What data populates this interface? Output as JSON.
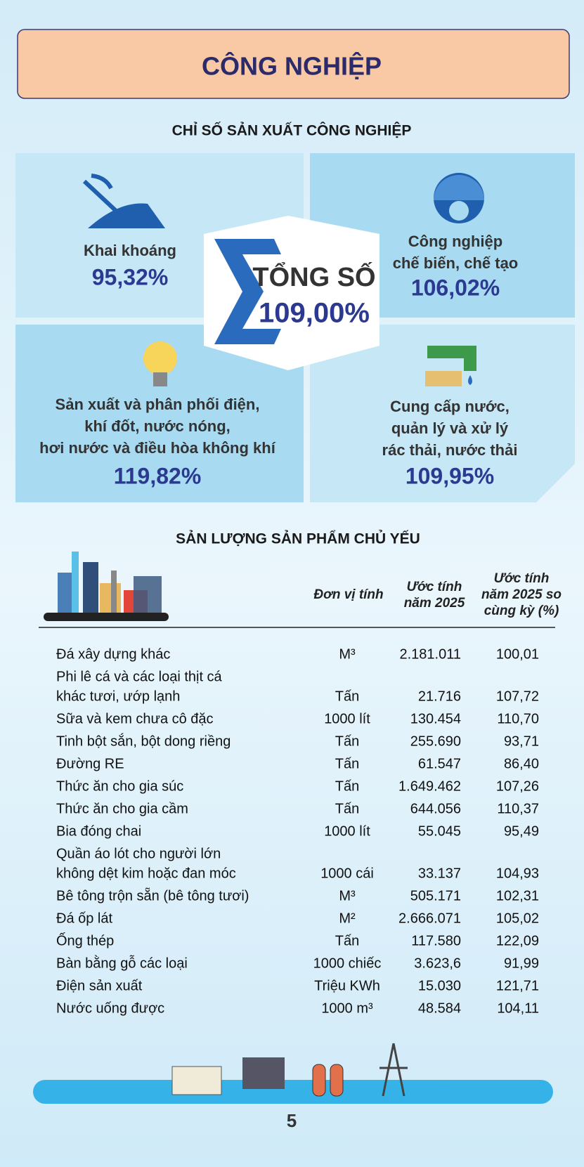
{
  "header": {
    "title": "CÔNG NGHIỆP"
  },
  "index_section": {
    "title": "CHỈ SỐ SẢN XUẤT CÔNG NGHIỆP",
    "total": {
      "label": "TỔNG SỐ",
      "value": "109,00%"
    },
    "sectors": [
      {
        "label": [
          "Khai khoáng"
        ],
        "value": "95,32%"
      },
      {
        "label": [
          "Công nghiệp",
          "chế biến, chế tạo"
        ],
        "value": "106,02%"
      },
      {
        "label": [
          "Sản xuất và phân phối điện,",
          "khí đốt, nước nóng,",
          "hơi nước và điều hòa không khí"
        ],
        "value": "119,82%"
      },
      {
        "label": [
          "Cung cấp nước,",
          "quản lý và xử lý",
          "rác thải, nước thải"
        ],
        "value": "109,95%"
      }
    ]
  },
  "products_section": {
    "title": "SẢN LƯỢNG SẢN PHẨM CHỦ YẾU",
    "table": {
      "headers": [
        [
          "Đơn vị tính"
        ],
        [
          "Ước tính",
          "năm 2025"
        ],
        [
          "Ước tính",
          "năm 2025 so",
          "cùng kỳ (%)"
        ]
      ],
      "rows": [
        {
          "name": [
            "Đá xây dựng khác"
          ],
          "unit": "M³",
          "estimate": "2.181.011",
          "percent": "100,01"
        },
        {
          "name": [
            "Phi lê cá và các loại thịt cá",
            "khác tươi, ướp lạnh"
          ],
          "unit": "Tấn",
          "estimate": "21.716",
          "percent": "107,72"
        },
        {
          "name": [
            "Sữa và kem chưa cô đặc"
          ],
          "unit": "1000 lít",
          "estimate": "130.454",
          "percent": "110,70"
        },
        {
          "name": [
            "Tinh bột sắn, bột dong riềng"
          ],
          "unit": "Tấn",
          "estimate": "255.690",
          "percent": "93,71"
        },
        {
          "name": [
            "Đường RE"
          ],
          "unit": "Tấn",
          "estimate": "61.547",
          "percent": "86,40"
        },
        {
          "name": [
            "Thức ăn cho gia súc"
          ],
          "unit": "Tấn",
          "estimate": "1.649.462",
          "percent": "107,26"
        },
        {
          "name": [
            "Thức ăn cho gia cầm"
          ],
          "unit": "Tấn",
          "estimate": "644.056",
          "percent": "110,37"
        },
        {
          "name": [
            "Bia đóng chai"
          ],
          "unit": "1000 lít",
          "estimate": "55.045",
          "percent": "95,49"
        },
        {
          "name": [
            "Quần áo lót cho người lớn",
            "không dệt kim hoặc đan móc"
          ],
          "unit": "1000 cái",
          "estimate": "33.137",
          "percent": "104,93"
        },
        {
          "name": [
            "Bê tông trộn sẵn (bê tông tươi)"
          ],
          "unit": "M³",
          "estimate": "505.171",
          "percent": "102,31"
        },
        {
          "name": [
            "Đá ốp lát"
          ],
          "unit": "M²",
          "estimate": "2.666.071",
          "percent": "105,02"
        },
        {
          "name": [
            "Ống thép"
          ],
          "unit": "Tấn",
          "estimate": "117.580",
          "percent": "122,09"
        },
        {
          "name": [
            "Bàn bằng gỗ các loại"
          ],
          "unit": "1000 chiếc",
          "estimate": "3.623,6",
          "percent": "91,99"
        },
        {
          "name": [
            "Điện sản xuất"
          ],
          "unit": "Triệu KWh",
          "estimate": "15.030",
          "percent": "121,71"
        },
        {
          "name": [
            "Nước uống được"
          ],
          "unit": "1000 m³",
          "estimate": "48.584",
          "percent": "104,11"
        }
      ]
    }
  },
  "page_number": "5"
}
